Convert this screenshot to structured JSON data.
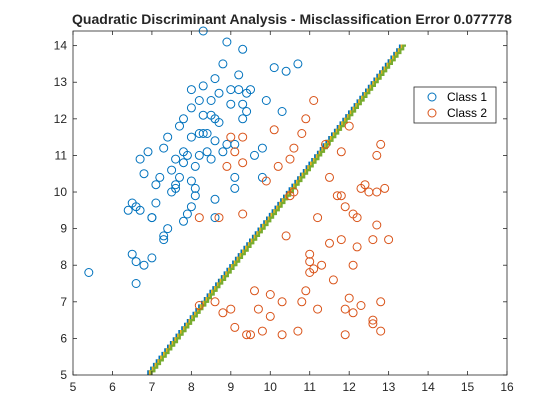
{
  "chart_data": {
    "type": "scatter",
    "title": "Quadratic Discriminant Analysis - Misclassification Error 0.077778",
    "xlabel": "",
    "ylabel": "",
    "xlim": [
      5,
      16
    ],
    "ylim": [
      5,
      14.4
    ],
    "xticks": [
      "5",
      "6",
      "7",
      "8",
      "9",
      "10",
      "11",
      "12",
      "13",
      "14",
      "15",
      "16"
    ],
    "yticks": [
      "5",
      "6",
      "7",
      "8",
      "9",
      "10",
      "11",
      "12",
      "13",
      "14"
    ],
    "grid": false,
    "legend_position": "top-right",
    "series": [
      {
        "name": "Class 1",
        "color": "#0072BD",
        "marker": "circle",
        "points": [
          [
            5.4,
            7.8
          ],
          [
            6.4,
            9.5
          ],
          [
            6.5,
            8.3
          ],
          [
            6.6,
            8.1
          ],
          [
            6.6,
            7.5
          ],
          [
            6.5,
            9.7
          ],
          [
            6.6,
            9.6
          ],
          [
            6.7,
            9.5
          ],
          [
            6.8,
            10.5
          ],
          [
            6.7,
            10.9
          ],
          [
            6.8,
            8.0
          ],
          [
            7.0,
            8.2
          ],
          [
            6.9,
            11.1
          ],
          [
            7.0,
            9.3
          ],
          [
            7.1,
            9.7
          ],
          [
            7.0,
            9.3
          ],
          [
            7.1,
            10.2
          ],
          [
            7.2,
            10.4
          ],
          [
            7.3,
            8.8
          ],
          [
            7.3,
            8.7
          ],
          [
            7.4,
            9.0
          ],
          [
            7.3,
            11.2
          ],
          [
            7.4,
            11.5
          ],
          [
            7.5,
            10.0
          ],
          [
            7.5,
            10.6
          ],
          [
            7.6,
            10.2
          ],
          [
            7.6,
            10.9
          ],
          [
            7.7,
            11.8
          ],
          [
            7.7,
            10.4
          ],
          [
            7.8,
            10.8
          ],
          [
            7.8,
            11.1
          ],
          [
            7.8,
            12.0
          ],
          [
            7.9,
            11.0
          ],
          [
            7.9,
            9.4
          ],
          [
            7.8,
            9.2
          ],
          [
            8.0,
            9.6
          ],
          [
            8.0,
            10.3
          ],
          [
            8.0,
            11.5
          ],
          [
            8.0,
            12.3
          ],
          [
            8.0,
            12.8
          ],
          [
            8.1,
            9.9
          ],
          [
            8.1,
            10.1
          ],
          [
            8.1,
            10.7
          ],
          [
            8.2,
            11.0
          ],
          [
            8.2,
            11.6
          ],
          [
            8.2,
            12.5
          ],
          [
            8.3,
            11.6
          ],
          [
            8.3,
            12.1
          ],
          [
            8.3,
            12.9
          ],
          [
            8.3,
            14.4
          ],
          [
            8.4,
            11.1
          ],
          [
            8.4,
            11.6
          ],
          [
            8.5,
            10.9
          ],
          [
            8.5,
            12.1
          ],
          [
            8.5,
            12.5
          ],
          [
            8.6,
            11.4
          ],
          [
            8.6,
            12.0
          ],
          [
            8.6,
            13.1
          ],
          [
            8.7,
            11.9
          ],
          [
            8.7,
            12.7
          ],
          [
            8.8,
            13.5
          ],
          [
            8.8,
            11.1
          ],
          [
            8.9,
            11.3
          ],
          [
            8.9,
            14.1
          ],
          [
            9.0,
            12.4
          ],
          [
            9.0,
            12.8
          ],
          [
            9.1,
            10.1
          ],
          [
            9.1,
            11.3
          ],
          [
            9.2,
            12.8
          ],
          [
            9.2,
            13.2
          ],
          [
            9.3,
            12.0
          ],
          [
            9.3,
            12.4
          ],
          [
            9.4,
            12.7
          ],
          [
            9.3,
            13.9
          ],
          [
            9.4,
            12.2
          ],
          [
            9.5,
            12.8
          ],
          [
            9.6,
            11.0
          ],
          [
            9.8,
            10.4
          ],
          [
            9.9,
            12.5
          ],
          [
            9.8,
            11.2
          ],
          [
            10.1,
            13.4
          ],
          [
            10.3,
            12.2
          ],
          [
            10.4,
            13.3
          ],
          [
            10.7,
            13.5
          ],
          [
            8.6,
            9.3
          ],
          [
            9.1,
            10.4
          ],
          [
            8.6,
            9.8
          ],
          [
            7.6,
            10.1
          ]
        ]
      },
      {
        "name": "Class 2",
        "color": "#D95319",
        "marker": "circle",
        "points": [
          [
            8.2,
            6.9
          ],
          [
            8.2,
            9.3
          ],
          [
            8.7,
            9.3
          ],
          [
            8.6,
            7.0
          ],
          [
            8.8,
            6.7
          ],
          [
            9.0,
            6.8
          ],
          [
            9.0,
            11.5
          ],
          [
            9.1,
            11.1
          ],
          [
            8.9,
            10.7
          ],
          [
            9.1,
            6.3
          ],
          [
            9.3,
            9.4
          ],
          [
            9.3,
            10.8
          ],
          [
            9.3,
            11.5
          ],
          [
            9.4,
            6.1
          ],
          [
            9.5,
            6.1
          ],
          [
            9.6,
            7.3
          ],
          [
            9.8,
            6.2
          ],
          [
            9.9,
            10.3
          ],
          [
            10.0,
            7.2
          ],
          [
            10.0,
            6.6
          ],
          [
            10.1,
            11.7
          ],
          [
            10.2,
            10.7
          ],
          [
            10.3,
            7.0
          ],
          [
            10.3,
            6.1
          ],
          [
            10.4,
            8.8
          ],
          [
            10.5,
            10.9
          ],
          [
            10.6,
            11.2
          ],
          [
            10.6,
            10.0
          ],
          [
            10.7,
            6.2
          ],
          [
            10.8,
            11.6
          ],
          [
            10.8,
            7.0
          ],
          [
            10.9,
            7.3
          ],
          [
            11.0,
            8.3
          ],
          [
            11.0,
            8.1
          ],
          [
            11.0,
            7.8
          ],
          [
            11.1,
            7.9
          ],
          [
            11.2,
            9.3
          ],
          [
            11.2,
            6.8
          ],
          [
            11.3,
            8.0
          ],
          [
            11.4,
            11.3
          ],
          [
            11.5,
            10.4
          ],
          [
            11.5,
            8.6
          ],
          [
            11.6,
            7.6
          ],
          [
            11.7,
            9.9
          ],
          [
            11.8,
            11.1
          ],
          [
            11.8,
            9.9
          ],
          [
            11.8,
            8.7
          ],
          [
            11.9,
            6.8
          ],
          [
            11.9,
            6.1
          ],
          [
            11.9,
            9.6
          ],
          [
            12.0,
            11.8
          ],
          [
            12.0,
            7.1
          ],
          [
            12.1,
            8.0
          ],
          [
            12.1,
            6.7
          ],
          [
            12.1,
            9.4
          ],
          [
            12.2,
            9.3
          ],
          [
            12.2,
            8.5
          ],
          [
            12.3,
            10.1
          ],
          [
            12.3,
            6.9
          ],
          [
            12.4,
            10.2
          ],
          [
            12.5,
            10.0
          ],
          [
            12.6,
            8.7
          ],
          [
            12.6,
            6.4
          ],
          [
            12.6,
            6.5
          ],
          [
            12.7,
            11.0
          ],
          [
            12.7,
            10.0
          ],
          [
            12.7,
            9.1
          ],
          [
            12.8,
            11.3
          ],
          [
            12.8,
            6.2
          ],
          [
            12.9,
            10.1
          ],
          [
            12.8,
            7.0
          ],
          [
            13.0,
            8.7
          ],
          [
            11.1,
            12.5
          ],
          [
            10.9,
            12.0
          ],
          [
            10.5,
            9.9
          ],
          [
            9.7,
            6.8
          ]
        ]
      }
    ],
    "boundary": {
      "colors": [
        "#0072BD",
        "#EDB120",
        "#77AC30"
      ],
      "x": [
        6.95,
        13.4
      ],
      "y": [
        5.0,
        14.0
      ]
    }
  }
}
